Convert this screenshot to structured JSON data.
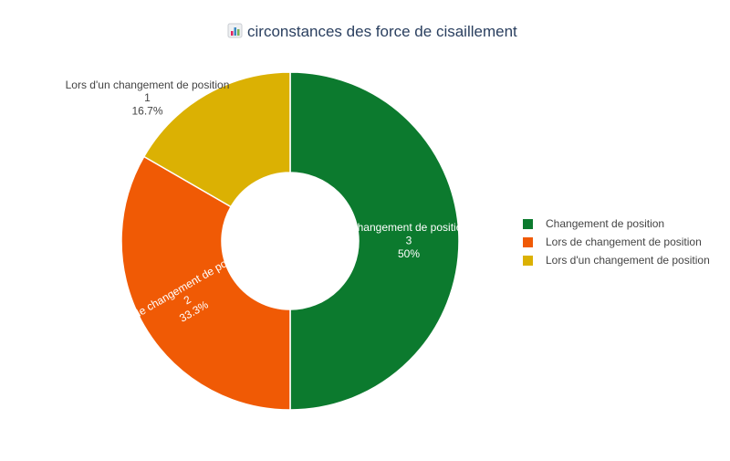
{
  "chart_data": {
    "type": "pie",
    "title": "circonstances des force de cisaillement",
    "title_icon": "bar-chart-emoji-icon",
    "hole": true,
    "legend_position": "right",
    "categories": [
      "Changement de position",
      "Lors de changement de position",
      "Lors d'un changement de position"
    ],
    "values": [
      3,
      2,
      1
    ],
    "percent_labels": [
      "50%",
      "33.3%",
      "16.7%"
    ],
    "colors": [
      "#0c7a2e",
      "#f05a05",
      "#dbb103"
    ]
  }
}
